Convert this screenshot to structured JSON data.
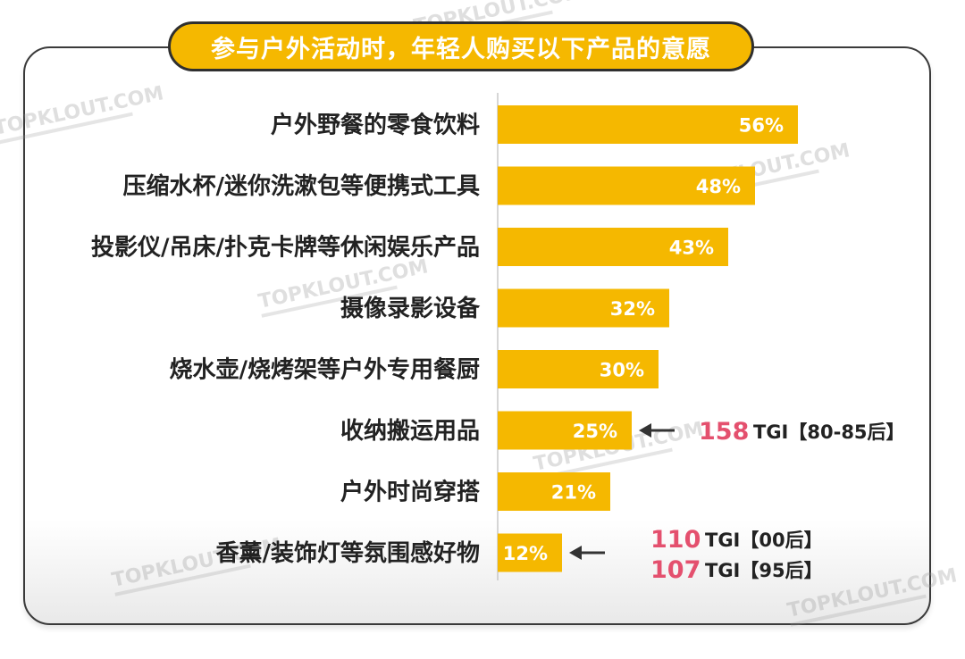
{
  "title": "参与户外活动时，年轻人购买以下产品的意愿",
  "watermark": "TOPKLOUT.COM",
  "colors": {
    "bar": "#f5b800",
    "accent_red": "#e4506e",
    "axis": "#c8c8c8",
    "arrow": "#333333"
  },
  "chart_data": {
    "type": "bar",
    "orientation": "horizontal",
    "categories": [
      "户外野餐的零食饮料",
      "压缩水杯/迷你洗漱包等便携式工具",
      "投影仪/吊床/扑克卡牌等休闲娱乐产品",
      "摄像录影设备",
      "烧水壶/烧烤架等户外专用餐厨",
      "收纳搬运用品",
      "户外时尚穿搭",
      "香薰/装饰灯等氛围感好物"
    ],
    "values": [
      56,
      48,
      43,
      32,
      30,
      25,
      21,
      12
    ],
    "value_labels": [
      "56%",
      "48%",
      "43%",
      "32%",
      "30%",
      "25%",
      "21%",
      "12%"
    ],
    "unit": "%",
    "annotations": [
      {
        "category_index": 5,
        "lines": [
          {
            "value": "158",
            "text": "TGI【80-85后】"
          }
        ]
      },
      {
        "category_index": 7,
        "lines": [
          {
            "value": "110",
            "text": "TGI【00后】"
          },
          {
            "value": "107",
            "text": "TGI【95后】"
          }
        ]
      }
    ]
  }
}
